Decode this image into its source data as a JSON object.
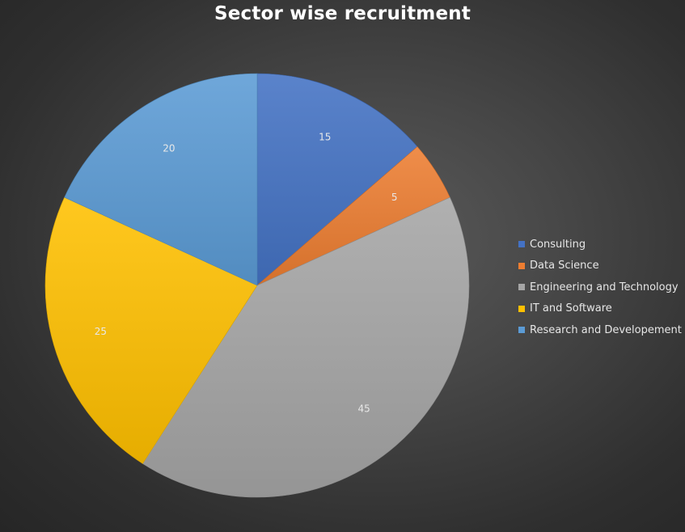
{
  "chart_data": {
    "type": "pie",
    "title": "Sector wise recruitment",
    "categories": [
      "Consulting",
      "Data Science",
      "Engineering and Technology",
      "IT and Software",
      "Research and Developement"
    ],
    "values": [
      15,
      5,
      45,
      25,
      20
    ],
    "data_labels": [
      "15",
      "5",
      "45",
      "25",
      "20"
    ],
    "colors": [
      "#4472c4",
      "#ed7d31",
      "#a5a5a5",
      "#ffc000",
      "#5b9bd5"
    ],
    "legend_position": "right",
    "start_angle": "12 o'clock, clockwise"
  }
}
